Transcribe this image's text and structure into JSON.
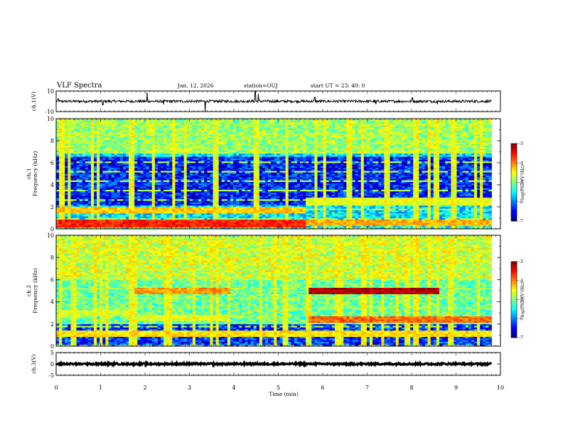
{
  "header": {
    "title": "VLF Spectra",
    "date": "Jan. 12, 2026",
    "station": "station=OUJ",
    "start": "start UT =  23: 40: 0"
  },
  "chart_data": {
    "type": "heatmap",
    "xlabel": "Time (min)",
    "xlim": [
      0,
      10
    ],
    "x_ticks": [
      "0",
      "1",
      "2",
      "3",
      "4",
      "5",
      "6",
      "7",
      "8",
      "9",
      "10"
    ],
    "panels": [
      {
        "id": "ch1_waveform",
        "type": "line",
        "ylabel": "ch.1(V)",
        "ylim": [
          -10,
          10
        ],
        "y_ticks": [
          "10",
          "-10"
        ],
        "baseline": 0,
        "noise_amplitude": 1.2,
        "spikes": [
          {
            "t": 0.05,
            "v": 2.5
          },
          {
            "t": 1.05,
            "v": -3.5
          },
          {
            "t": 2.05,
            "v": 8.5
          },
          {
            "t": 2.42,
            "v": -3
          },
          {
            "t": 3.35,
            "v": -9.5
          },
          {
            "t": 4.48,
            "v": 9.5
          },
          {
            "t": 4.55,
            "v": 7
          },
          {
            "t": 5.82,
            "v": 4
          },
          {
            "t": 7.2,
            "v": -3
          },
          {
            "t": 8.02,
            "v": 3.5
          },
          {
            "t": 8.58,
            "v": -3
          }
        ]
      },
      {
        "id": "ch1_spectrogram",
        "type": "heatmap",
        "ylabel_line1": "ch.1",
        "ylabel_line2": "Frequency (kHz)",
        "ylim": [
          0,
          10
        ],
        "y_ticks": [
          "0",
          "2",
          "4",
          "6",
          "8",
          "10"
        ],
        "colorbar": {
          "label": "log(PSD)(V²/Hz)",
          "range": [
            -7,
            -3
          ],
          "ticks": [
            "-3",
            "-4",
            "-5",
            "-6",
            "-7"
          ]
        },
        "bands": [
          {
            "t0": 0,
            "t1": 5.6,
            "f": 0.5,
            "level": -3.6
          },
          {
            "t0": 0,
            "t1": 5.6,
            "f": 1.7,
            "level": -4.3
          },
          {
            "t0": 5.6,
            "t1": 9.8,
            "f": 2.5,
            "level": -4.6
          },
          {
            "t0": 5.6,
            "t1": 9.8,
            "f": 0.6,
            "level": -4.2
          }
        ],
        "background_level": -5.6,
        "low_region": {
          "f0": 2.2,
          "f1": 6.5,
          "level": -6.4
        },
        "bursts": [
          0.3,
          0.95,
          1.7,
          2.2,
          2.9,
          3.6,
          4.5,
          5.2,
          5.85,
          6.6,
          7.45,
          8.1,
          8.55,
          8.95,
          9.45
        ]
      },
      {
        "id": "ch2_spectrogram",
        "type": "heatmap",
        "ylabel_line1": "ch.2",
        "ylabel_line2": "Frequency (kHz)",
        "ylim": [
          0,
          10
        ],
        "y_ticks": [
          "0",
          "2",
          "4",
          "6",
          "8",
          "10"
        ],
        "colorbar": {
          "label": "log(PSD)(V²/Hz)",
          "range": [
            -7,
            -3
          ],
          "ticks": [
            "-3",
            "-4",
            "-5",
            "-6",
            "-7"
          ]
        },
        "bands": [
          {
            "t0": 1.75,
            "t1": 3.9,
            "f": 5.0,
            "level": -4.1
          },
          {
            "t0": 5.7,
            "t1": 8.6,
            "f": 5.0,
            "level": -3.2
          },
          {
            "t0": 0,
            "t1": 1.75,
            "f": 3.0,
            "level": -4.7
          },
          {
            "t0": 1.75,
            "t1": 3.9,
            "f": 2.6,
            "level": -4.6
          },
          {
            "t0": 5.7,
            "t1": 9.8,
            "f": 2.4,
            "level": -3.9
          },
          {
            "t0": 0,
            "t1": 9.8,
            "f": 1.2,
            "level": -4.4
          }
        ],
        "background_level": -5.1,
        "low_region": {
          "f0": 0.0,
          "f1": 2.0,
          "level": -6.3
        },
        "bursts": [
          0.4,
          1.0,
          1.75,
          2.5,
          3.1,
          3.9,
          4.6,
          5.15,
          5.7,
          6.4,
          7.1,
          7.9,
          8.6,
          8.9,
          9.5
        ]
      },
      {
        "id": "ch3_waveform",
        "type": "line",
        "ylabel": "ch.3(V)",
        "ylim": [
          -5,
          5
        ],
        "y_ticks": [
          "5",
          "0",
          "-5"
        ],
        "baseline": 0,
        "noise_amplitude": 0.35,
        "spikes": []
      }
    ],
    "data_end_min": 9.8
  }
}
